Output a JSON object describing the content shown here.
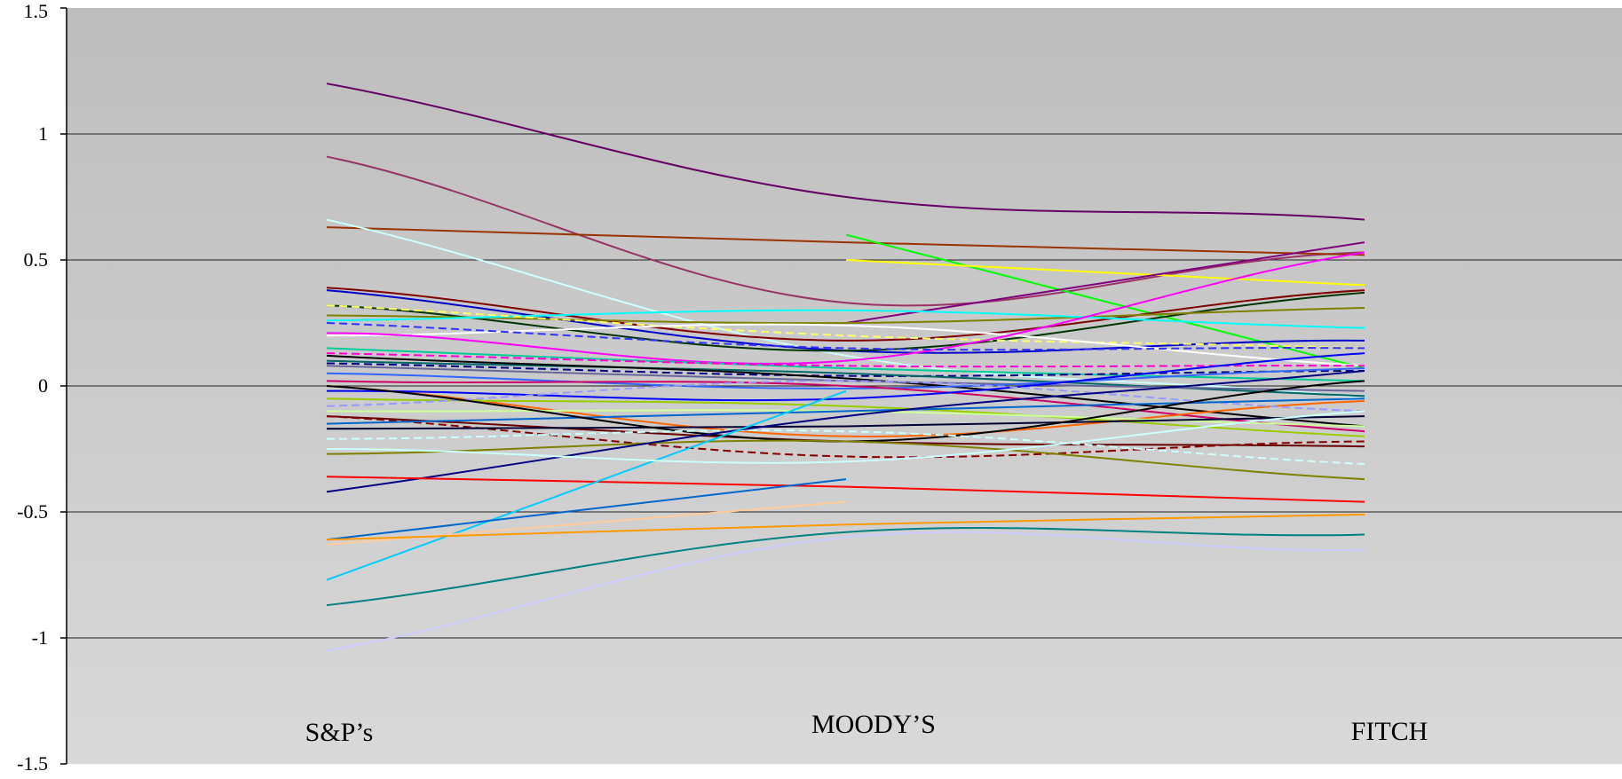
{
  "chart_data": {
    "type": "line",
    "title": "",
    "xlabel": "",
    "ylabel": "",
    "categories": [
      "S&P’s",
      "MOODY’S",
      "FITCH"
    ],
    "ylim": [
      -1.5,
      1.5
    ],
    "yticks": [
      1.5,
      1,
      0.5,
      0,
      -0.5,
      -1,
      -1.5
    ],
    "ytick_labels": [
      "1.5",
      "1",
      "0.5",
      "0",
      "-0.5",
      "-1",
      "-1.5"
    ],
    "grid": true,
    "legend": "none",
    "plot_background": "#c8c8c8",
    "series": [
      {
        "values": [
          1.2,
          0.75,
          0.66
        ],
        "color": "#660066"
      },
      {
        "values": [
          0.91,
          0.33,
          0.53
        ],
        "color": "#993366"
      },
      {
        "values": [
          0.63,
          0.57,
          0.52
        ],
        "color": "#993300"
      },
      {
        "values": [
          0.66,
          0.12,
          -0.05
        ],
        "color": "#ccffff"
      },
      {
        "values": [
          null,
          0.6,
          0.07
        ],
        "color": "#00ff00"
      },
      {
        "values": [
          null,
          0.5,
          0.4
        ],
        "color": "#ffff00"
      },
      {
        "values": [
          null,
          0.25,
          0.57
        ],
        "color": "#800080"
      },
      {
        "values": [
          0.39,
          0.18,
          0.38
        ],
        "color": "#800000"
      },
      {
        "values": [
          0.38,
          0.14,
          0.18
        ],
        "color": "#0000cc"
      },
      {
        "values": [
          0.32,
          0.14,
          0.37
        ],
        "color": "#003300"
      },
      {
        "values": [
          0.28,
          0.25,
          0.31
        ],
        "color": "#808000"
      },
      {
        "values": [
          0.26,
          0.3,
          0.23
        ],
        "color": "#00ffff"
      },
      {
        "values": [
          0.32,
          0.2,
          0.15
        ],
        "color": "#ffff66",
        "dashed": true
      },
      {
        "values": [
          0.2,
          0.24,
          0.08
        ],
        "color": "#ffffff"
      },
      {
        "values": [
          0.21,
          0.1,
          0.53
        ],
        "color": "#ff00ff"
      },
      {
        "values": [
          0.25,
          0.15,
          0.15
        ],
        "color": "#3333ff",
        "dashed": true
      },
      {
        "values": [
          0.15,
          0.07,
          0.02
        ],
        "color": "#00cc99"
      },
      {
        "values": [
          0.13,
          0.08,
          0.08
        ],
        "color": "#ff00cc",
        "dashed": true
      },
      {
        "values": [
          0.09,
          0.04,
          0.06
        ],
        "color": "#000080",
        "dashed": true
      },
      {
        "values": [
          0.1,
          0.05,
          -0.04
        ],
        "color": "#006666"
      },
      {
        "values": [
          0.12,
          0.03,
          -0.16
        ],
        "color": "#000000"
      },
      {
        "values": [
          0.08,
          0.02,
          -0.02
        ],
        "color": "#666699"
      },
      {
        "values": [
          0.05,
          -0.01,
          0.07
        ],
        "color": "#3366ff"
      },
      {
        "values": [
          0.02,
          0.0,
          -0.18
        ],
        "color": "#cc0066"
      },
      {
        "values": [
          0.0,
          -0.2,
          -0.06
        ],
        "color": "#ff6600"
      },
      {
        "values": [
          -0.02,
          -0.05,
          0.13
        ],
        "color": "#0000ff"
      },
      {
        "values": [
          -0.05,
          -0.08,
          -0.2
        ],
        "color": "#99cc00"
      },
      {
        "values": [
          -0.08,
          0.02,
          -0.1
        ],
        "color": "#9999ff",
        "dashed": true
      },
      {
        "values": [
          -0.1,
          -0.1,
          -0.16
        ],
        "color": "#ccff99"
      },
      {
        "values": [
          -0.12,
          -0.22,
          -0.24
        ],
        "color": "#660000"
      },
      {
        "values": [
          -0.12,
          -0.28,
          -0.22
        ],
        "color": "#800000",
        "dashed": true
      },
      {
        "values": [
          -0.15,
          -0.1,
          -0.05
        ],
        "color": "#0066cc"
      },
      {
        "values": [
          -0.17,
          -0.16,
          -0.12
        ],
        "color": "#000033"
      },
      {
        "values": [
          0.0,
          -0.22,
          0.02
        ],
        "color": "#000000"
      },
      {
        "values": [
          -0.21,
          -0.18,
          -0.31
        ],
        "color": "#ccffff",
        "dashed": true
      },
      {
        "values": [
          -0.27,
          -0.22,
          -0.37
        ],
        "color": "#808000"
      },
      {
        "values": [
          -0.42,
          -0.12,
          0.06
        ],
        "color": "#000080"
      },
      {
        "values": [
          -0.36,
          -0.4,
          -0.46
        ],
        "color": "#ff0000"
      },
      {
        "values": [
          -0.77,
          -0.02,
          null
        ],
        "color": "#00ccff"
      },
      {
        "values": [
          -0.61,
          -0.37,
          null
        ],
        "color": "#0066cc"
      },
      {
        "values": [
          -0.63,
          -0.46,
          null
        ],
        "color": "#ffcc99"
      },
      {
        "values": [
          -0.61,
          -0.55,
          -0.51
        ],
        "color": "#ff9900"
      },
      {
        "values": [
          -0.87,
          -0.58,
          -0.59
        ],
        "color": "#008080"
      },
      {
        "values": [
          -1.05,
          -0.6,
          -0.65
        ],
        "color": "#ccccff"
      },
      {
        "values": [
          -0.25,
          -0.3,
          -0.1
        ],
        "color": "#ccffff"
      }
    ]
  }
}
